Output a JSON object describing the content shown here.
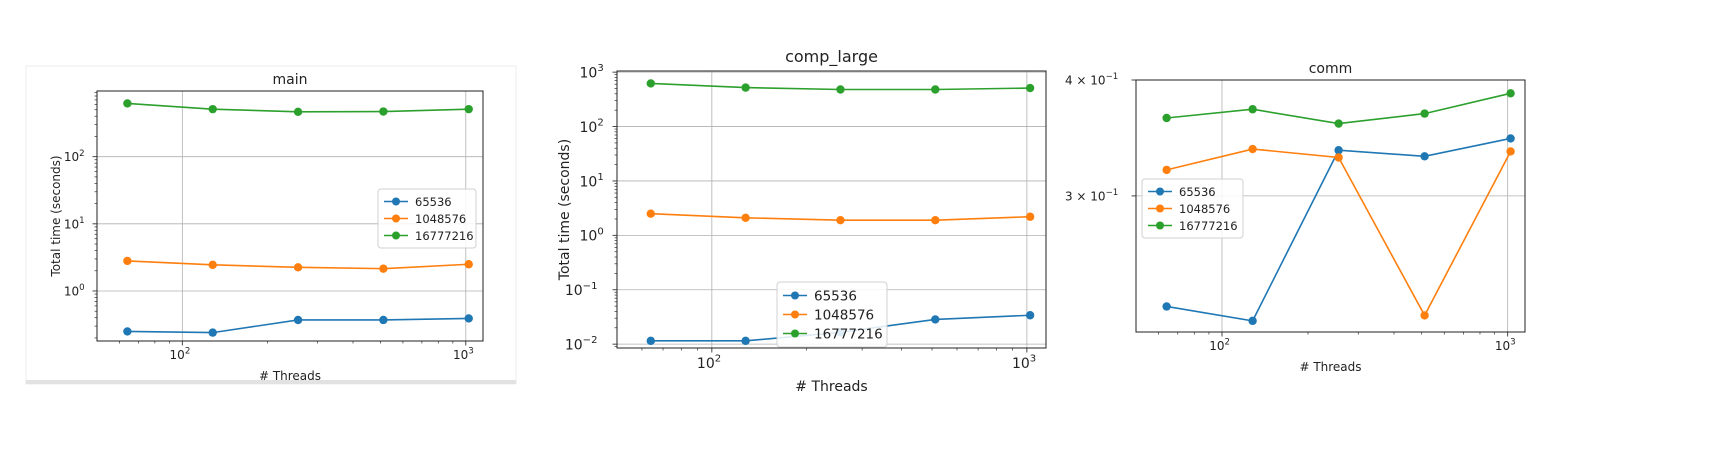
{
  "chart_data": [
    {
      "type": "line",
      "title": "main",
      "xlabel": "# Threads",
      "ylabel": "Total time (seconds)",
      "xscale": "log",
      "yscale": "log",
      "xlim": [
        50,
        1150
      ],
      "ylim": [
        0.18,
        950
      ],
      "x_ticks": [
        {
          "value": 100,
          "base": "10",
          "exp": "2"
        },
        {
          "value": 1000,
          "base": "10",
          "exp": "3"
        }
      ],
      "y_ticks": [
        {
          "value": 1,
          "base": "10",
          "exp": "0"
        },
        {
          "value": 10,
          "base": "10",
          "exp": "1"
        },
        {
          "value": 100,
          "base": "10",
          "exp": "2"
        }
      ],
      "grid": true,
      "legend_position": "center-right",
      "x": [
        64,
        128,
        256,
        512,
        1024
      ],
      "series": [
        {
          "name": "65536",
          "color": "#1f77b4",
          "values": [
            0.25,
            0.24,
            0.37,
            0.37,
            0.39
          ]
        },
        {
          "name": "1048576",
          "color": "#ff7f0e",
          "values": [
            2.8,
            2.45,
            2.25,
            2.15,
            2.5
          ]
        },
        {
          "name": "16777216",
          "color": "#2ca02c",
          "values": [
            620,
            510,
            465,
            470,
            510
          ]
        }
      ]
    },
    {
      "type": "line",
      "title": "comp_large",
      "xlabel": "# Threads",
      "ylabel": "Total time (seconds)",
      "xscale": "log",
      "yscale": "log",
      "xlim": [
        50,
        1150
      ],
      "ylim": [
        0.0085,
        1050
      ],
      "x_ticks": [
        {
          "value": 100,
          "base": "10",
          "exp": "2"
        },
        {
          "value": 1000,
          "base": "10",
          "exp": "3"
        }
      ],
      "y_ticks": [
        {
          "value": 0.01,
          "base": "10",
          "exp": "−2"
        },
        {
          "value": 0.1,
          "base": "10",
          "exp": "−1"
        },
        {
          "value": 1,
          "base": "10",
          "exp": "0"
        },
        {
          "value": 10,
          "base": "10",
          "exp": "1"
        },
        {
          "value": 100,
          "base": "10",
          "exp": "2"
        },
        {
          "value": 1000,
          "base": "10",
          "exp": "3"
        }
      ],
      "grid": true,
      "legend_position": "lower-center",
      "x": [
        64,
        128,
        256,
        512,
        1024
      ],
      "series": [
        {
          "name": "65536",
          "color": "#1f77b4",
          "values": [
            0.0115,
            0.0115,
            0.0165,
            0.0285,
            0.034
          ]
        },
        {
          "name": "1048576",
          "color": "#ff7f0e",
          "values": [
            2.5,
            2.1,
            1.9,
            1.9,
            2.2
          ]
        },
        {
          "name": "16777216",
          "color": "#2ca02c",
          "values": [
            620,
            520,
            480,
            480,
            510
          ]
        }
      ]
    },
    {
      "type": "line",
      "title": "comm",
      "xlabel": "# Threads",
      "ylabel": "",
      "xscale": "log",
      "yscale": "log",
      "xlim": [
        50,
        1150
      ],
      "ylim": [
        0.214,
        0.4
      ],
      "x_ticks": [
        {
          "value": 100,
          "base": "10",
          "exp": "2"
        },
        {
          "value": 1000,
          "base": "10",
          "exp": "3"
        }
      ],
      "y_ticks": [
        {
          "value": 0.3,
          "base": "3 × 10",
          "exp": "−1"
        },
        {
          "value": 0.4,
          "base": "4 × 10",
          "exp": "−1"
        }
      ],
      "grid": true,
      "legend_position": "center-left",
      "x": [
        64,
        128,
        256,
        512,
        1024
      ],
      "series": [
        {
          "name": "65536",
          "color": "#1f77b4",
          "values": [
            0.228,
            0.22,
            0.336,
            0.331,
            0.346
          ]
        },
        {
          "name": "1048576",
          "color": "#ff7f0e",
          "values": [
            0.32,
            0.337,
            0.33,
            0.223,
            0.335
          ]
        },
        {
          "name": "16777216",
          "color": "#2ca02c",
          "values": [
            0.364,
            0.372,
            0.359,
            0.368,
            0.387
          ]
        }
      ]
    }
  ]
}
